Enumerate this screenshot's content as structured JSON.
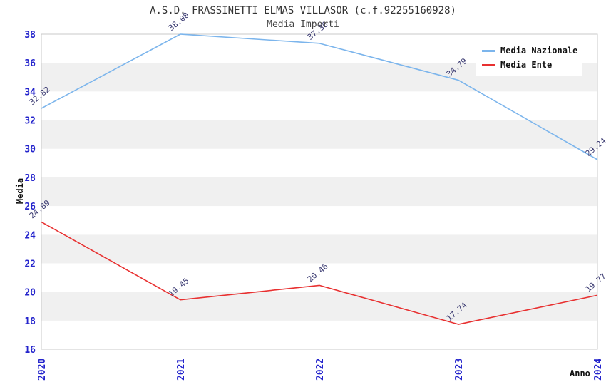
{
  "header": {
    "title": "A.S.D. FRASSINETTI ELMAS VILLASOR (c.f.92255160928)",
    "subtitle": "Media Importi"
  },
  "chart_data": {
    "type": "line",
    "x": [
      2020,
      2021,
      2022,
      2023,
      2024
    ],
    "series": [
      {
        "name": "Media Nazionale",
        "color": "#7cb5ec",
        "values": [
          32.82,
          38.0,
          37.36,
          34.79,
          29.24
        ]
      },
      {
        "name": "Media Ente",
        "color": "#e83030",
        "values": [
          24.89,
          19.45,
          20.46,
          17.74,
          19.77
        ]
      }
    ],
    "xlabel": "Anno",
    "ylabel": "Media",
    "ylim": [
      16,
      38
    ],
    "ytick_step": 2,
    "grid": "alternating-horizontal-bands",
    "legend_position": "top-right",
    "colors": {
      "band_white": "#ffffff",
      "band_gray": "#f0f0f0",
      "plot_border": "#c9c9c9",
      "tick_label": "#2424cc",
      "data_label": "#383870"
    }
  }
}
